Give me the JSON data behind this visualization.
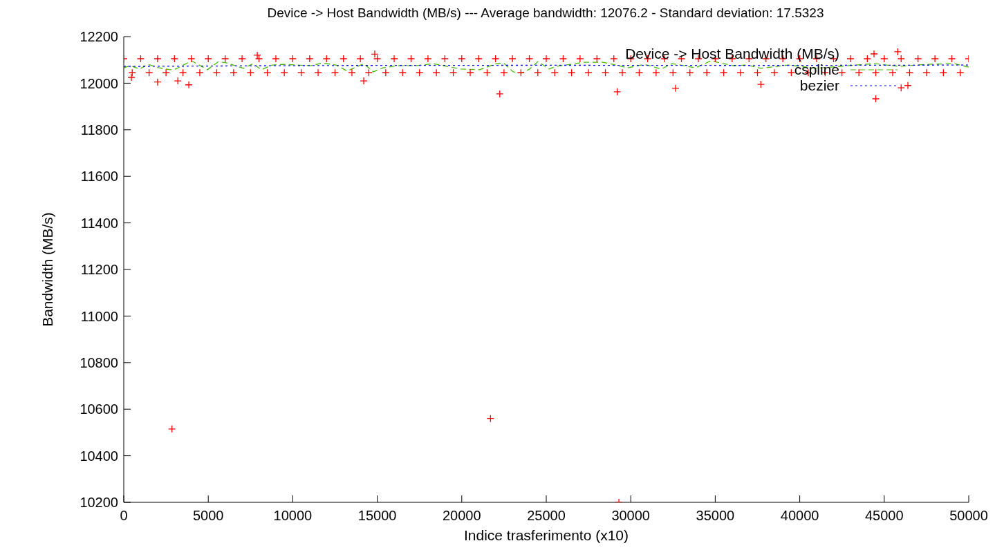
{
  "chart_data": {
    "type": "scatter",
    "title": "Device -> Host Bandwidth (MB/s) --- Average bandwidth: 12076.2 - Standard deviation: 17.5323",
    "xlabel": "Indice trasferimento (x10)",
    "ylabel": "Bandwidth (MB/s)",
    "xlim": [
      0,
      50000
    ],
    "xticks": [
      0,
      5000,
      10000,
      15000,
      20000,
      25000,
      30000,
      35000,
      40000,
      45000,
      50000
    ],
    "ylim": [
      10200,
      12200
    ],
    "yticks": [
      10200,
      10400,
      10600,
      10800,
      11000,
      11200,
      11400,
      11600,
      11800,
      12000,
      12200
    ],
    "grid": false,
    "legend": "top right",
    "series": [
      {
        "name": "Device -> Host Bandwidth (MB/s)",
        "marker": "cross",
        "color": "#ff0000",
        "x": [
          0,
          500,
          1000,
          1500,
          2000,
          2500,
          3000,
          3500,
          4000,
          4500,
          5000,
          5500,
          6000,
          6500,
          7000,
          7500,
          8000,
          8500,
          9000,
          9500,
          10000,
          10500,
          11000,
          11500,
          12000,
          12500,
          13000,
          13500,
          14000,
          14500,
          15000,
          15500,
          16000,
          16500,
          17000,
          17500,
          18000,
          18500,
          19000,
          19500,
          20000,
          20500,
          21000,
          21500,
          22000,
          22500,
          23000,
          23500,
          24000,
          24500,
          25000,
          25500,
          26000,
          26500,
          27000,
          27500,
          28000,
          28500,
          29000,
          29500,
          30000,
          30500,
          31000,
          31500,
          32000,
          32500,
          33000,
          33500,
          34000,
          34500,
          35000,
          35500,
          36000,
          36500,
          37000,
          37500,
          38000,
          38500,
          39000,
          39500,
          40000,
          40500,
          41000,
          41500,
          42000,
          42500,
          43000,
          43500,
          44000,
          44500,
          45000,
          45500,
          46000,
          46500,
          47000,
          47500,
          48000,
          48500,
          49000,
          49500,
          50000,
          450,
          2000,
          3200,
          3850,
          14200,
          22250,
          29200,
          32650,
          37700,
          44500,
          46000,
          46400,
          7900,
          14850,
          45800,
          2850,
          21700,
          29300
        ],
        "values": [
          12105,
          12045,
          12105,
          12045,
          12105,
          12045,
          12105,
          12045,
          12105,
          12045,
          12105,
          12045,
          12105,
          12045,
          12105,
          12045,
          12105,
          12045,
          12105,
          12045,
          12105,
          12045,
          12105,
          12045,
          12105,
          12045,
          12105,
          12045,
          12105,
          12045,
          12105,
          12045,
          12105,
          12045,
          12105,
          12045,
          12105,
          12045,
          12105,
          12045,
          12105,
          12045,
          12105,
          12045,
          12105,
          12045,
          12105,
          12045,
          12105,
          12045,
          12105,
          12045,
          12105,
          12045,
          12105,
          12045,
          12105,
          12045,
          12105,
          12045,
          12105,
          12045,
          12105,
          12045,
          12105,
          12045,
          12105,
          12045,
          12105,
          12045,
          12105,
          12045,
          12105,
          12045,
          12105,
          12045,
          12105,
          12045,
          12105,
          12045,
          12105,
          12045,
          12105,
          12045,
          12105,
          12045,
          12105,
          12045,
          12105,
          12045,
          12105,
          12045,
          12105,
          12045,
          12105,
          12045,
          12105,
          12045,
          12105,
          12045,
          12105,
          12025,
          12005,
          12010,
          11993,
          12010,
          11954,
          11963,
          11978,
          11995,
          11933,
          11980,
          11990,
          12120,
          12125,
          12135,
          10515,
          10560,
          10200
        ]
      },
      {
        "name": "cspline",
        "type": "line",
        "marker": "none",
        "line_style": "dashed",
        "color": "#44bb00",
        "x": [
          0,
          370,
          940,
          1430,
          2090,
          2740,
          3070,
          4010,
          4950,
          5610,
          6100,
          7080,
          7650,
          8140,
          8800,
          9450,
          11090,
          11740,
          12560,
          13220,
          14200,
          14770,
          15350,
          16160,
          17310,
          18290,
          19930,
          21070,
          22060,
          22470,
          23040,
          23530,
          24020,
          24510,
          25170,
          25580,
          26720,
          27210,
          28360,
          29830,
          30810,
          31800,
          32450,
          33840,
          34740,
          36050,
          36870,
          37690,
          39320,
          40960,
          44400,
          45870,
          47510,
          49150,
          50000
        ],
        "values": [
          12066,
          12075,
          12061,
          12081,
          12066,
          12058,
          12061,
          12096,
          12058,
          12093,
          12087,
          12064,
          12084,
          12058,
          12078,
          12081,
          12075,
          12087,
          12078,
          12052,
          12084,
          12049,
          12066,
          12075,
          12075,
          12084,
          12061,
          12058,
          12084,
          12087,
          12049,
          12043,
          12061,
          12093,
          12061,
          12072,
          12084,
          12090,
          12090,
          12066,
          12081,
          12061,
          12084,
          12066,
          12096,
          12075,
          12078,
          12064,
          12078,
          12064,
          12084,
          12072,
          12081,
          12084,
          12069
        ]
      },
      {
        "name": "bezier",
        "type": "line",
        "marker": "none",
        "line_style": "dotted",
        "color": "#0000ff",
        "x": [
          0,
          12500,
          25000,
          37500,
          50000
        ],
        "values": [
          12072,
          12076,
          12077,
          12076,
          12078
        ]
      }
    ]
  }
}
